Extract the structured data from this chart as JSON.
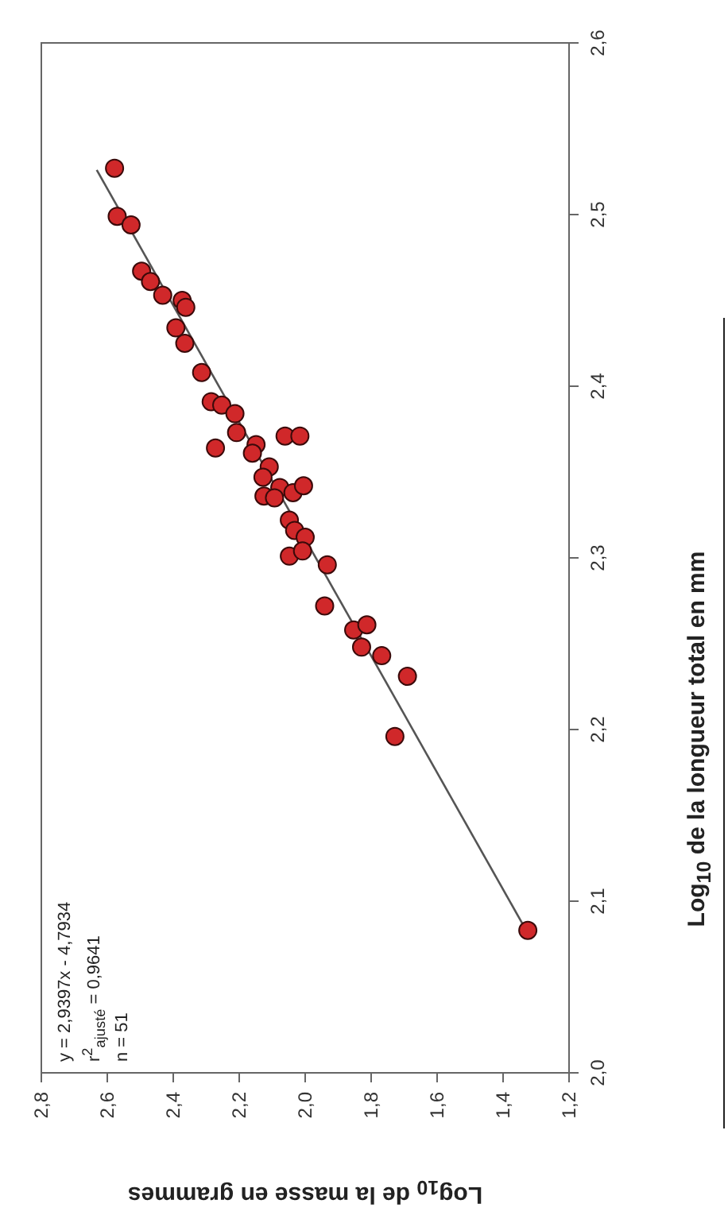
{
  "chart_data": {
    "type": "scatter",
    "xlabel": "Log$_{10}$ de la masse en grammes",
    "ylabel": "Log$_{10}$ de la longueur total en mm",
    "annotations": [
      "y = 2,9397x - 4,7934",
      "r$^{2}$$_{ajusté}$ = 0,9641",
      "n = 51"
    ],
    "ylim": [
      2.0,
      2.6
    ],
    "yticks": [
      {
        "value": 2.0,
        "label": "2,0"
      },
      {
        "value": 2.1,
        "label": "2,1"
      },
      {
        "value": 2.2,
        "label": "2,2"
      },
      {
        "value": 2.3,
        "label": "2,3"
      },
      {
        "value": 2.4,
        "label": "2,4"
      },
      {
        "value": 2.5,
        "label": "2,5"
      },
      {
        "value": 2.6,
        "label": "2,6"
      }
    ],
    "xlim": [
      2.8,
      1.2
    ],
    "xticks": [
      {
        "value": 1.2,
        "label": "1,2"
      },
      {
        "value": 1.4,
        "label": "1,4"
      },
      {
        "value": 1.6,
        "label": "1,6"
      },
      {
        "value": 1.8,
        "label": "1,8"
      },
      {
        "value": 2.0,
        "label": "2,0"
      },
      {
        "value": 2.2,
        "label": "2,2"
      },
      {
        "value": 2.4,
        "label": "2,4"
      },
      {
        "value": 2.6,
        "label": "2,6"
      },
      {
        "value": 2.8,
        "label": "2,8"
      }
    ],
    "series": [
      {
        "type": "line",
        "color": "#555555",
        "x": [
          1.33,
          2.632
        ],
        "values": [
          2.083,
          2.526
        ]
      },
      {
        "type": "scatter",
        "color": "#d0282a",
        "values": [
          2.527,
          2.499,
          2.494,
          2.467,
          2.461,
          2.453,
          2.45,
          2.446,
          2.434,
          2.425,
          2.408,
          2.391,
          2.389,
          2.384,
          2.364,
          2.373,
          2.371,
          2.371,
          2.366,
          2.361,
          2.353,
          2.347,
          2.341,
          2.336,
          2.335,
          2.338,
          2.342,
          2.322,
          2.316,
          2.312,
          2.301,
          2.304,
          2.296,
          2.272,
          2.258,
          2.261,
          2.248,
          2.243,
          2.231,
          2.196,
          2.083
        ],
        "x": [
          2.578,
          2.57,
          2.528,
          2.496,
          2.469,
          2.432,
          2.373,
          2.362,
          2.392,
          2.365,
          2.314,
          2.285,
          2.253,
          2.213,
          2.272,
          2.208,
          2.061,
          2.016,
          2.149,
          2.16,
          2.109,
          2.128,
          2.077,
          2.125,
          2.093,
          2.037,
          2.005,
          2.048,
          2.032,
          2.0,
          2.048,
          2.008,
          1.933,
          1.941,
          1.853,
          1.813,
          1.829,
          1.768,
          1.69,
          1.728,
          1.325
        ]
      }
    ]
  }
}
